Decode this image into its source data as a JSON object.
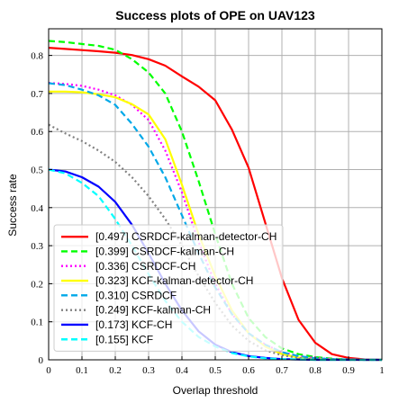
{
  "chart_data": {
    "type": "line",
    "title": "Success plots of OPE on UAV123",
    "xlabel": "Overlap threshold",
    "ylabel": "Success rate",
    "xlim": [
      0,
      1
    ],
    "ylim": [
      0,
      0.87
    ],
    "x_ticks": [
      "0",
      "0.1",
      "0.2",
      "0.3",
      "0.4",
      "0.5",
      "0.6",
      "0.7",
      "0.8",
      "0.9",
      "1"
    ],
    "y_ticks": [
      "0",
      "0.1",
      "0.2",
      "0.3",
      "0.4",
      "0.5",
      "0.6",
      "0.7",
      "0.8"
    ],
    "grid": true,
    "legend_position": "lower-left",
    "x": [
      0,
      0.05,
      0.1,
      0.15,
      0.2,
      0.25,
      0.3,
      0.35,
      0.4,
      0.45,
      0.5,
      0.55,
      0.6,
      0.65,
      0.7,
      0.75,
      0.8,
      0.85,
      0.9,
      0.95,
      1.0
    ],
    "series": [
      {
        "name": "[0.497] CSRDCF-kalman-detector-CH",
        "color": "#ff0000",
        "dash": "solid",
        "values": [
          0.82,
          0.817,
          0.814,
          0.811,
          0.807,
          0.801,
          0.79,
          0.773,
          0.745,
          0.718,
          0.682,
          0.605,
          0.505,
          0.36,
          0.215,
          0.105,
          0.045,
          0.015,
          0.005,
          0.001,
          0
        ]
      },
      {
        "name": "[0.399] CSRDCF-kalman-CH",
        "color": "#00ff00",
        "dash": "dashed",
        "values": [
          0.838,
          0.835,
          0.83,
          0.825,
          0.815,
          0.79,
          0.755,
          0.7,
          0.6,
          0.47,
          0.33,
          0.2,
          0.11,
          0.06,
          0.03,
          0.015,
          0.007,
          0.003,
          0.001,
          0,
          0
        ]
      },
      {
        "name": "[0.336] CSRDCF-CH",
        "color": "#ff00ff",
        "dash": "dotted",
        "values": [
          0.728,
          0.725,
          0.72,
          0.71,
          0.695,
          0.67,
          0.63,
          0.55,
          0.44,
          0.31,
          0.2,
          0.12,
          0.07,
          0.04,
          0.02,
          0.01,
          0.005,
          0.002,
          0.001,
          0,
          0
        ]
      },
      {
        "name": "[0.323] KCF-kalman-detector-CH",
        "color": "#ffff00",
        "dash": "solid",
        "values": [
          0.705,
          0.705,
          0.703,
          0.698,
          0.69,
          0.672,
          0.645,
          0.58,
          0.46,
          0.33,
          0.22,
          0.13,
          0.07,
          0.035,
          0.015,
          0.006,
          0.002,
          0.001,
          0,
          0,
          0
        ]
      },
      {
        "name": "[0.310] CSRDCF",
        "color": "#00a8e8",
        "dash": "dashed",
        "values": [
          0.727,
          0.722,
          0.71,
          0.695,
          0.67,
          0.62,
          0.56,
          0.48,
          0.38,
          0.28,
          0.19,
          0.12,
          0.07,
          0.04,
          0.02,
          0.01,
          0.004,
          0.002,
          0.001,
          0,
          0
        ]
      },
      {
        "name": "[0.249] KCF-kalman-CH",
        "color": "#808080",
        "dash": "dotted",
        "values": [
          0.618,
          0.595,
          0.575,
          0.55,
          0.52,
          0.48,
          0.43,
          0.37,
          0.3,
          0.22,
          0.15,
          0.09,
          0.05,
          0.025,
          0.012,
          0.005,
          0.002,
          0.001,
          0,
          0,
          0
        ]
      },
      {
        "name": "[0.173] KCF-CH",
        "color": "#0000ff",
        "dash": "solid",
        "values": [
          0.5,
          0.495,
          0.48,
          0.455,
          0.415,
          0.355,
          0.28,
          0.2,
          0.13,
          0.075,
          0.04,
          0.02,
          0.01,
          0.005,
          0.002,
          0.001,
          0,
          0,
          0,
          0,
          0
        ]
      },
      {
        "name": "[0.155] KCF",
        "color": "#00ffff",
        "dash": "dashed",
        "values": [
          0.5,
          0.49,
          0.465,
          0.43,
          0.37,
          0.3,
          0.225,
          0.155,
          0.1,
          0.06,
          0.035,
          0.018,
          0.009,
          0.004,
          0.002,
          0.001,
          0,
          0,
          0,
          0,
          0
        ]
      }
    ]
  }
}
